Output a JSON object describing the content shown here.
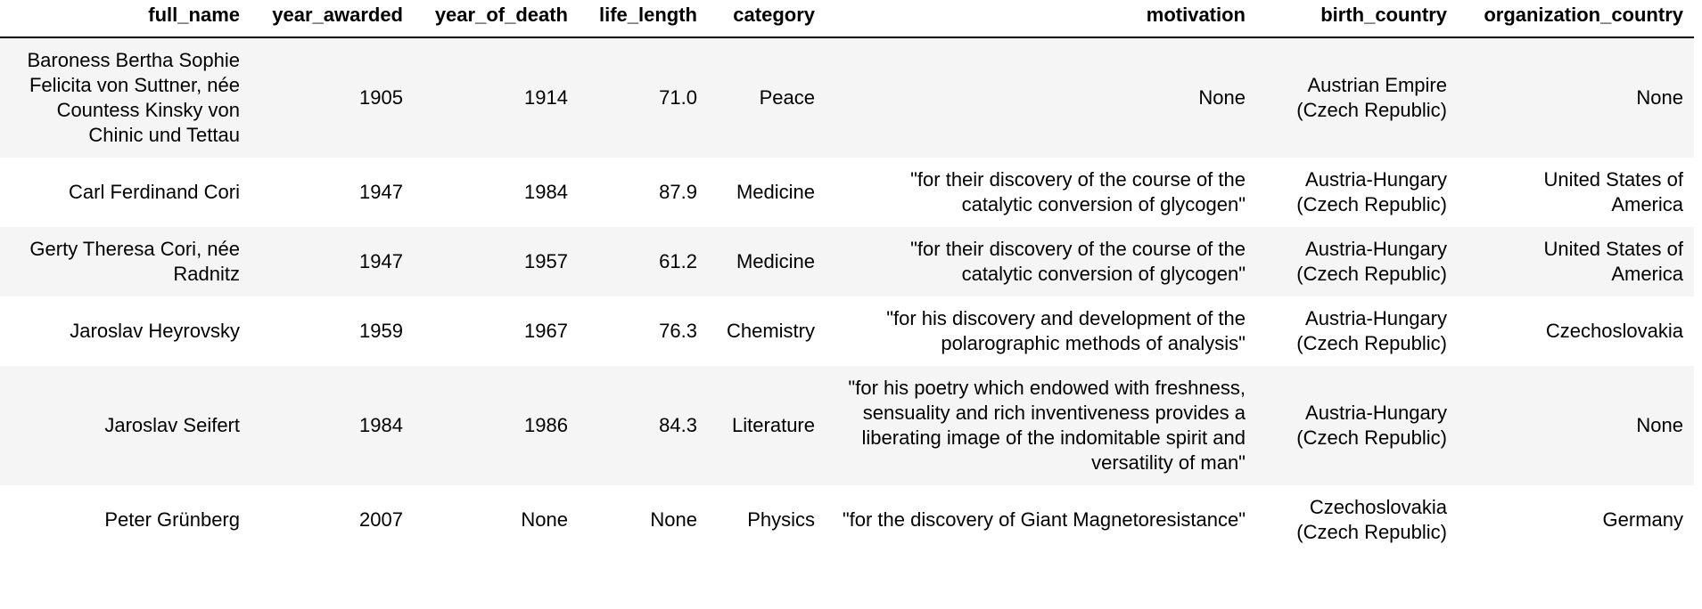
{
  "table": {
    "columns": [
      "full_name",
      "year_awarded",
      "year_of_death",
      "life_length",
      "category",
      "motivation",
      "birth_country",
      "organization_country"
    ],
    "rows": [
      {
        "full_name": "Baroness Bertha Sophie Felicita von Suttner, née Countess Kinsky von Chinic und Tettau",
        "year_awarded": "1905",
        "year_of_death": "1914",
        "life_length": "71.0",
        "category": "Peace",
        "motivation": "None",
        "birth_country": "Austrian Empire (Czech Republic)",
        "organization_country": "None"
      },
      {
        "full_name": "Carl Ferdinand Cori",
        "year_awarded": "1947",
        "year_of_death": "1984",
        "life_length": "87.9",
        "category": "Medicine",
        "motivation": "\"for their discovery of the course of the catalytic conversion of glycogen\"",
        "birth_country": "Austria-Hungary (Czech Republic)",
        "organization_country": "United States of America"
      },
      {
        "full_name": "Gerty Theresa Cori, née Radnitz",
        "year_awarded": "1947",
        "year_of_death": "1957",
        "life_length": "61.2",
        "category": "Medicine",
        "motivation": "\"for their discovery of the course of the catalytic conversion of glycogen\"",
        "birth_country": "Austria-Hungary (Czech Republic)",
        "organization_country": "United States of America"
      },
      {
        "full_name": "Jaroslav Heyrovsky",
        "year_awarded": "1959",
        "year_of_death": "1967",
        "life_length": "76.3",
        "category": "Chemistry",
        "motivation": "\"for his discovery and development of the polarographic methods of analysis\"",
        "birth_country": "Austria-Hungary (Czech Republic)",
        "organization_country": "Czechoslovakia"
      },
      {
        "full_name": "Jaroslav Seifert",
        "year_awarded": "1984",
        "year_of_death": "1986",
        "life_length": "84.3",
        "category": "Literature",
        "motivation": "\"for his poetry which endowed with freshness, sensuality and rich inventiveness provides a liberating image of the indomitable spirit and versatility of man\"",
        "birth_country": "Austria-Hungary (Czech Republic)",
        "organization_country": "None"
      },
      {
        "full_name": "Peter Grünberg",
        "year_awarded": "2007",
        "year_of_death": "None",
        "life_length": "None",
        "category": "Physics",
        "motivation": "\"for the discovery of Giant Magnetoresistance\"",
        "birth_country": "Czechoslovakia (Czech Republic)",
        "organization_country": "Germany"
      }
    ]
  }
}
